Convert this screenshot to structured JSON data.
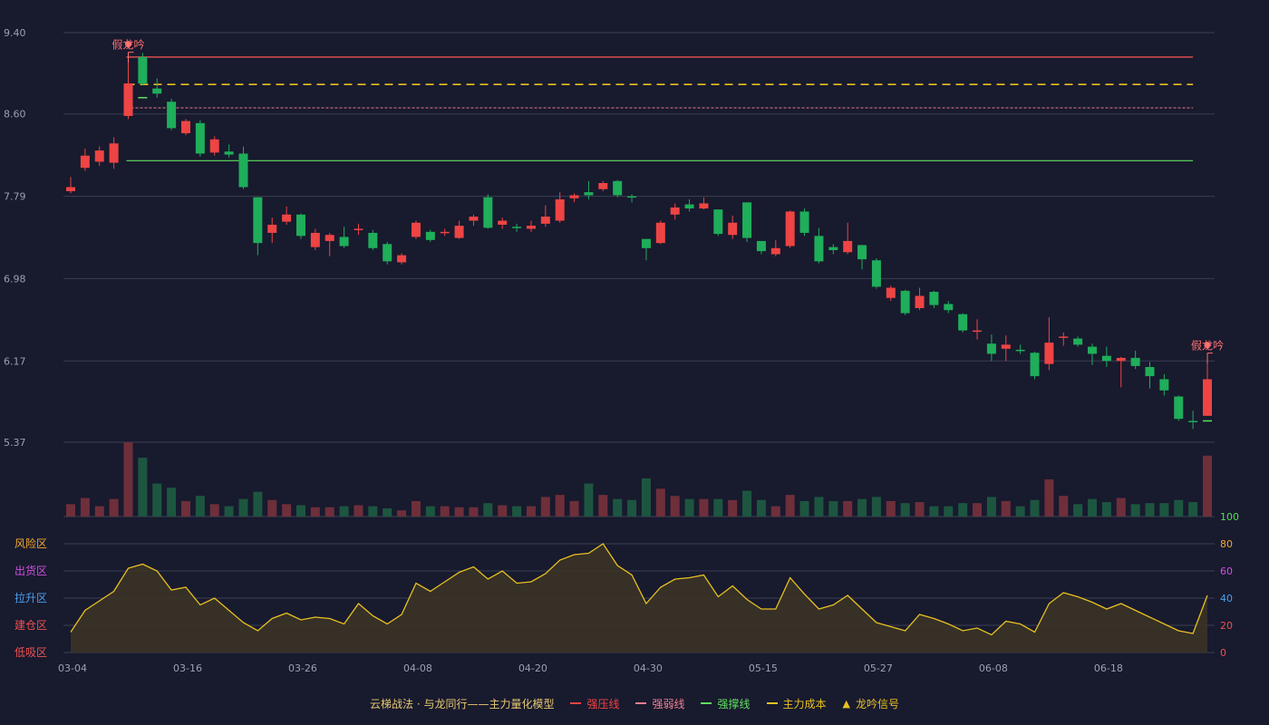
{
  "chart_data": {
    "type": "candlestick",
    "price_axis": {
      "ticks": [
        9.4,
        8.6,
        7.79,
        6.98,
        6.17,
        5.37
      ],
      "range": [
        5.37,
        9.4
      ]
    },
    "x_tick_labels": [
      {
        "index": 0,
        "label": "03-04"
      },
      {
        "index": 8,
        "label": "03-16"
      },
      {
        "index": 16,
        "label": "03-26"
      },
      {
        "index": 24,
        "label": "04-08"
      },
      {
        "index": 32,
        "label": "04-20"
      },
      {
        "index": 40,
        "label": "04-30"
      },
      {
        "index": 48,
        "label": "05-15"
      },
      {
        "index": 56,
        "label": "05-27"
      },
      {
        "index": 64,
        "label": "06-08"
      },
      {
        "index": 72,
        "label": "06-18"
      }
    ],
    "candles": [
      [
        7.84,
        7.88,
        7.98,
        7.82
      ],
      [
        8.07,
        8.19,
        8.26,
        8.04
      ],
      [
        8.13,
        8.24,
        8.28,
        8.09
      ],
      [
        8.12,
        8.31,
        8.37,
        8.06
      ],
      [
        8.58,
        8.9,
        9.1,
        8.55
      ],
      [
        9.16,
        8.9,
        9.2,
        8.88
      ],
      [
        8.85,
        8.8,
        8.95,
        8.76
      ],
      [
        8.72,
        8.46,
        8.75,
        8.44
      ],
      [
        8.41,
        8.53,
        8.55,
        8.39
      ],
      [
        8.51,
        8.21,
        8.54,
        8.18
      ],
      [
        8.22,
        8.35,
        8.38,
        8.19
      ],
      [
        8.23,
        8.2,
        8.3,
        8.17
      ],
      [
        8.21,
        7.88,
        8.28,
        7.86
      ],
      [
        7.78,
        7.33,
        7.78,
        7.21
      ],
      [
        7.43,
        7.51,
        7.58,
        7.33
      ],
      [
        7.54,
        7.61,
        7.69,
        7.51
      ],
      [
        7.61,
        7.4,
        7.62,
        7.37
      ],
      [
        7.29,
        7.43,
        7.47,
        7.26
      ],
      [
        7.35,
        7.41,
        7.43,
        7.2
      ],
      [
        7.39,
        7.3,
        7.49,
        7.28
      ],
      [
        7.47,
        7.47,
        7.52,
        7.41
      ],
      [
        7.43,
        7.28,
        7.46,
        7.26
      ],
      [
        7.32,
        7.15,
        7.34,
        7.12
      ],
      [
        7.14,
        7.21,
        7.23,
        7.12
      ],
      [
        7.39,
        7.53,
        7.55,
        7.37
      ],
      [
        7.44,
        7.36,
        7.46,
        7.34
      ],
      [
        7.44,
        7.44,
        7.47,
        7.4
      ],
      [
        7.38,
        7.5,
        7.55,
        7.37
      ],
      [
        7.55,
        7.59,
        7.61,
        7.5
      ],
      [
        7.78,
        7.48,
        7.81,
        7.47
      ],
      [
        7.51,
        7.55,
        7.58,
        7.47
      ],
      [
        7.49,
        7.49,
        7.52,
        7.44
      ],
      [
        7.47,
        7.5,
        7.55,
        7.44
      ],
      [
        7.52,
        7.59,
        7.7,
        7.49
      ],
      [
        7.55,
        7.76,
        7.83,
        7.53
      ],
      [
        7.77,
        7.8,
        7.82,
        7.73
      ],
      [
        7.83,
        7.8,
        7.94,
        7.76
      ],
      [
        7.86,
        7.92,
        7.94,
        7.84
      ],
      [
        7.94,
        7.8,
        7.95,
        7.78
      ],
      [
        7.79,
        7.79,
        7.81,
        7.73
      ],
      [
        7.37,
        7.28,
        7.37,
        7.16
      ],
      [
        7.33,
        7.53,
        7.55,
        7.32
      ],
      [
        7.61,
        7.68,
        7.72,
        7.56
      ],
      [
        7.71,
        7.67,
        7.76,
        7.64
      ],
      [
        7.67,
        7.72,
        7.78,
        7.66
      ],
      [
        7.66,
        7.42,
        7.66,
        7.4
      ],
      [
        7.41,
        7.53,
        7.6,
        7.37
      ],
      [
        7.73,
        7.38,
        7.73,
        7.34
      ],
      [
        7.35,
        7.25,
        7.35,
        7.22
      ],
      [
        7.22,
        7.28,
        7.36,
        7.2
      ],
      [
        7.3,
        7.64,
        7.65,
        7.28
      ],
      [
        7.64,
        7.43,
        7.67,
        7.4
      ],
      [
        7.4,
        7.15,
        7.48,
        7.13
      ],
      [
        7.29,
        7.26,
        7.32,
        7.22
      ],
      [
        7.24,
        7.35,
        7.53,
        7.22
      ],
      [
        7.31,
        7.17,
        7.31,
        7.07
      ],
      [
        7.16,
        6.9,
        7.18,
        6.88
      ],
      [
        6.79,
        6.89,
        6.91,
        6.76
      ],
      [
        6.86,
        6.64,
        6.87,
        6.62
      ],
      [
        6.69,
        6.81,
        6.89,
        6.67
      ],
      [
        6.85,
        6.72,
        6.86,
        6.69
      ],
      [
        6.73,
        6.67,
        6.76,
        6.64
      ],
      [
        6.63,
        6.47,
        6.64,
        6.45
      ],
      [
        6.47,
        6.47,
        6.58,
        6.38
      ],
      [
        6.34,
        6.24,
        6.43,
        6.17
      ],
      [
        6.29,
        6.33,
        6.42,
        6.17
      ],
      [
        6.28,
        6.28,
        6.33,
        6.24
      ],
      [
        6.25,
        6.02,
        6.26,
        5.99
      ],
      [
        6.14,
        6.35,
        6.6,
        6.08
      ],
      [
        6.41,
        6.41,
        6.45,
        6.32
      ],
      [
        6.39,
        6.33,
        6.41,
        6.31
      ],
      [
        6.31,
        6.24,
        6.34,
        6.13
      ],
      [
        6.22,
        6.17,
        6.31,
        6.11
      ],
      [
        6.17,
        6.2,
        6.21,
        5.91
      ],
      [
        6.2,
        6.12,
        6.27,
        6.09
      ],
      [
        6.11,
        6.02,
        6.16,
        5.9
      ],
      [
        5.99,
        5.88,
        6.04,
        5.83
      ],
      [
        5.82,
        5.6,
        5.83,
        5.58
      ],
      [
        5.58,
        5.58,
        5.68,
        5.5
      ],
      [
        5.63,
        5.99,
        6.14,
        5.63
      ]
    ],
    "volume": [
      12,
      18,
      10,
      17,
      72,
      57,
      32,
      28,
      15,
      20,
      12,
      10,
      17,
      24,
      16,
      12,
      11,
      9,
      9,
      10,
      11,
      10,
      8,
      6,
      15,
      10,
      10,
      9,
      9,
      13,
      11,
      10,
      10,
      19,
      21,
      15,
      32,
      21,
      17,
      16,
      37,
      27,
      20,
      17,
      17,
      17,
      16,
      25,
      16,
      10,
      21,
      15,
      19,
      15,
      15,
      17,
      19,
      15,
      13,
      14,
      10,
      10,
      13,
      13,
      19,
      15,
      10,
      16,
      36,
      20,
      12,
      17,
      14,
      18,
      12,
      13,
      13,
      16,
      14,
      59
    ],
    "lines": {
      "strong_pressure": 9.16,
      "main_cost": 8.89,
      "strong_weak": 8.66,
      "strong_support": 8.14,
      "line_start_index": 4,
      "line_end_index": 78
    },
    "small_support_marks": [
      {
        "index": 5,
        "value": 8.76
      },
      {
        "index": 79,
        "value": 5.58
      }
    ],
    "signals": [
      {
        "index": 4,
        "label": "假龙吟"
      },
      {
        "index": 79,
        "label": "假龙吟"
      }
    ],
    "indicator": {
      "values": [
        15,
        31,
        38,
        45,
        62,
        65,
        60,
        46,
        48,
        35,
        40,
        31,
        22,
        16,
        25,
        29,
        24,
        26,
        25,
        21,
        36,
        27,
        21,
        28,
        51,
        45,
        52,
        59,
        63,
        54,
        60,
        51,
        52,
        58,
        68,
        72,
        73,
        80,
        64,
        57,
        36,
        48,
        54,
        55,
        57,
        41,
        49,
        39,
        32,
        32,
        55,
        43,
        32,
        35,
        42,
        32,
        22,
        19,
        16,
        28,
        25,
        21,
        16,
        18,
        13,
        23,
        21,
        15,
        36,
        44,
        41,
        37,
        32,
        36,
        31,
        26,
        21,
        16,
        14,
        42
      ],
      "axis_ticks": [
        100,
        80,
        60,
        40,
        20,
        0
      ],
      "range": [
        0,
        100
      ],
      "zones": [
        {
          "label": "风险区",
          "color": "#f0a830"
        },
        {
          "label": "出货区",
          "color": "#d050e0"
        },
        {
          "label": "拉升区",
          "color": "#4aa0f0"
        },
        {
          "label": "建仓区",
          "color": "#f05050"
        },
        {
          "label": "低吸区",
          "color": "#f05050"
        }
      ],
      "tick_colors": [
        "#50e050",
        "#f0a830",
        "#d050e0",
        "#4aa0f0",
        "#f05050",
        "#f05050"
      ]
    },
    "colors": {
      "up": "#ee4444",
      "down": "#1fae5a",
      "vol_up": "#6e2f3a",
      "vol_down": "#1d5640",
      "pressure": "#c84b4b",
      "weak": "#e87a8a",
      "support": "#5ee05e",
      "cost": "#e8c020",
      "indicator_line": "#e8c020",
      "indicator_fill": "#3a3326",
      "grid": "#3b3e52",
      "axis_text": "#9aa0b0",
      "signal": "#ff7070"
    }
  },
  "legend": {
    "title": "云梯战法 · 与龙同行——主力量化模型",
    "items": [
      {
        "label": "强压线",
        "color": "#ee4444",
        "style": "solid"
      },
      {
        "label": "强弱线",
        "color": "#f08090",
        "style": "dash"
      },
      {
        "label": "强撑线",
        "color": "#5ee05e",
        "style": "solid"
      },
      {
        "label": "主力成本",
        "color": "#e8c020",
        "style": "dash"
      },
      {
        "label": "龙吟信号",
        "color": "#e8c020",
        "style": "triangle",
        "icon": "▲"
      }
    ]
  }
}
